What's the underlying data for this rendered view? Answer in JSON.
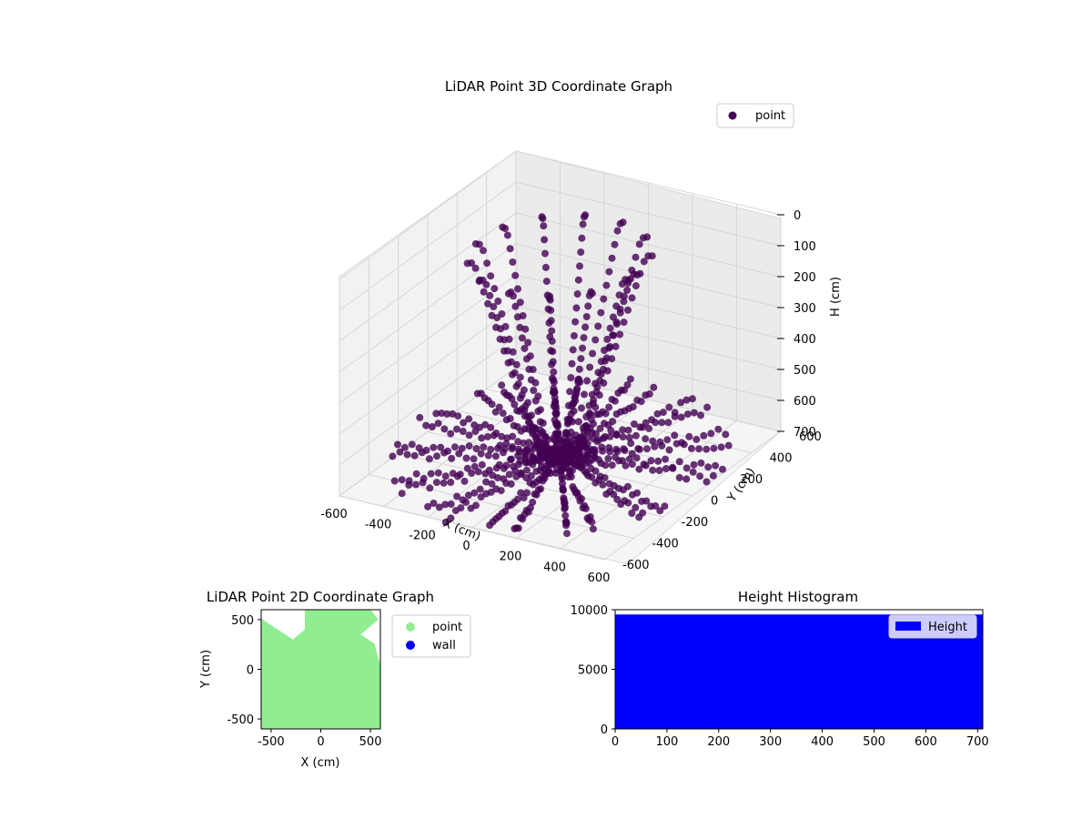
{
  "figure_size": {
    "width": 1200,
    "height": 900
  },
  "chart_data": [
    {
      "type": "scatter3d",
      "title": "LiDAR Point 3D Coordinate Graph",
      "xlabel": "X (cm)",
      "ylabel": "Y (cm)",
      "zlabel": "H (cm)",
      "xlim": [
        -600,
        600
      ],
      "ylim": [
        -600,
        600
      ],
      "zlim": [
        700,
        0
      ],
      "x_ticks": [
        "-600",
        "-400",
        "-200",
        "0",
        "200",
        "400",
        "600"
      ],
      "y_ticks": [
        "-600",
        "-400",
        "-200",
        "0",
        "200",
        "400",
        "600"
      ],
      "z_ticks": [
        "0",
        "100",
        "200",
        "300",
        "400",
        "500",
        "600",
        "700"
      ],
      "grid": true,
      "legend": {
        "position": "top-right",
        "entries": [
          {
            "label": "point",
            "color": "#440154"
          }
        ]
      },
      "series": [
        {
          "name": "point",
          "color": "#440154",
          "description_rays": 40,
          "max_range_cm": 650
        }
      ]
    },
    {
      "type": "scatter",
      "title": "LiDAR Point 2D Coordinate Graph",
      "xlabel": "X (cm)",
      "ylabel": "Y (cm)",
      "xlim": [
        -600,
        600
      ],
      "ylim": [
        -600,
        600
      ],
      "x_ticks": [
        "-500",
        "0",
        "500"
      ],
      "y_ticks": [
        "-500",
        "0",
        "500"
      ],
      "legend": {
        "position": "outside-right",
        "entries": [
          {
            "label": "point",
            "color": "#90ee90"
          },
          {
            "label": "wall",
            "color": "#0000ff"
          }
        ]
      }
    },
    {
      "type": "bar",
      "title": "Height Histogram",
      "xlim": [
        0,
        710
      ],
      "ylim": [
        0,
        10000
      ],
      "x_ticks": [
        "0",
        "100",
        "200",
        "300",
        "400",
        "500",
        "600",
        "700"
      ],
      "y_ticks": [
        "0",
        "5000",
        "10000"
      ],
      "values": [
        {
          "x_start": 0,
          "x_end": 710,
          "count": 9600
        }
      ],
      "legend": {
        "position": "top-right",
        "entries": [
          {
            "label": "Height",
            "color": "#0000ff"
          }
        ]
      }
    }
  ]
}
